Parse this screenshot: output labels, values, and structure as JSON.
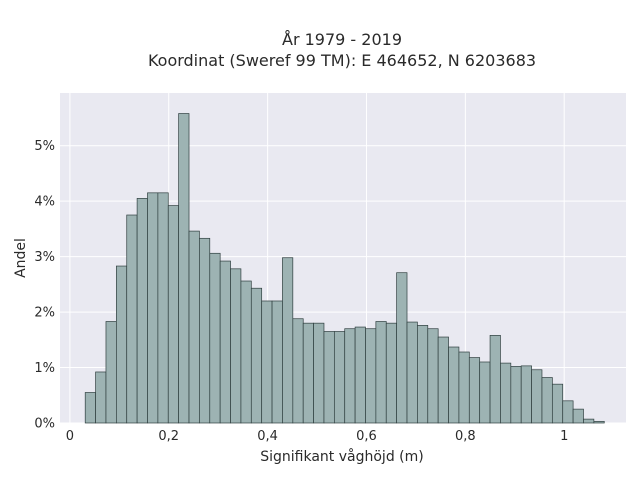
{
  "chart_data": {
    "type": "bar",
    "title_lines": [
      "År 1979 - 2019",
      "Koordinat (Sweref 99 TM): E 464652, N 6203683"
    ],
    "xlabel": "Signifikant våghöjd (m)",
    "ylabel": "Andel",
    "xlim": [
      -0.02,
      1.125
    ],
    "ylim": [
      0,
      5.95
    ],
    "x_ticks": [
      0,
      0.2,
      0.4,
      0.6,
      0.8,
      1
    ],
    "x_tick_labels": [
      "0",
      "0,2",
      "0,4",
      "0,6",
      "0,8",
      "1"
    ],
    "y_ticks": [
      0,
      1,
      2,
      3,
      4,
      5
    ],
    "y_tick_labels": [
      "0%",
      "1%",
      "2%",
      "3%",
      "4%",
      "5%"
    ],
    "bin_width": 0.021,
    "bin_start": 0.031,
    "values": [
      0.55,
      0.92,
      1.83,
      2.83,
      3.75,
      4.05,
      4.15,
      4.15,
      3.92,
      5.58,
      3.46,
      3.33,
      3.06,
      2.92,
      2.78,
      2.56,
      2.43,
      2.2,
      2.2,
      2.98,
      1.88,
      1.8,
      1.8,
      1.65,
      1.65,
      1.7,
      1.73,
      1.7,
      1.83,
      1.8,
      2.71,
      1.82,
      1.76,
      1.7,
      1.55,
      1.37,
      1.28,
      1.18,
      1.1,
      1.58,
      1.08,
      1.02,
      1.03,
      0.96,
      0.82,
      0.7,
      0.4,
      0.25,
      0.07,
      0.03
    ],
    "grid": true,
    "background_color": "#e9e9f1",
    "bar_color": "#9db3b3",
    "bar_edge_color": "#2f3f3f"
  }
}
